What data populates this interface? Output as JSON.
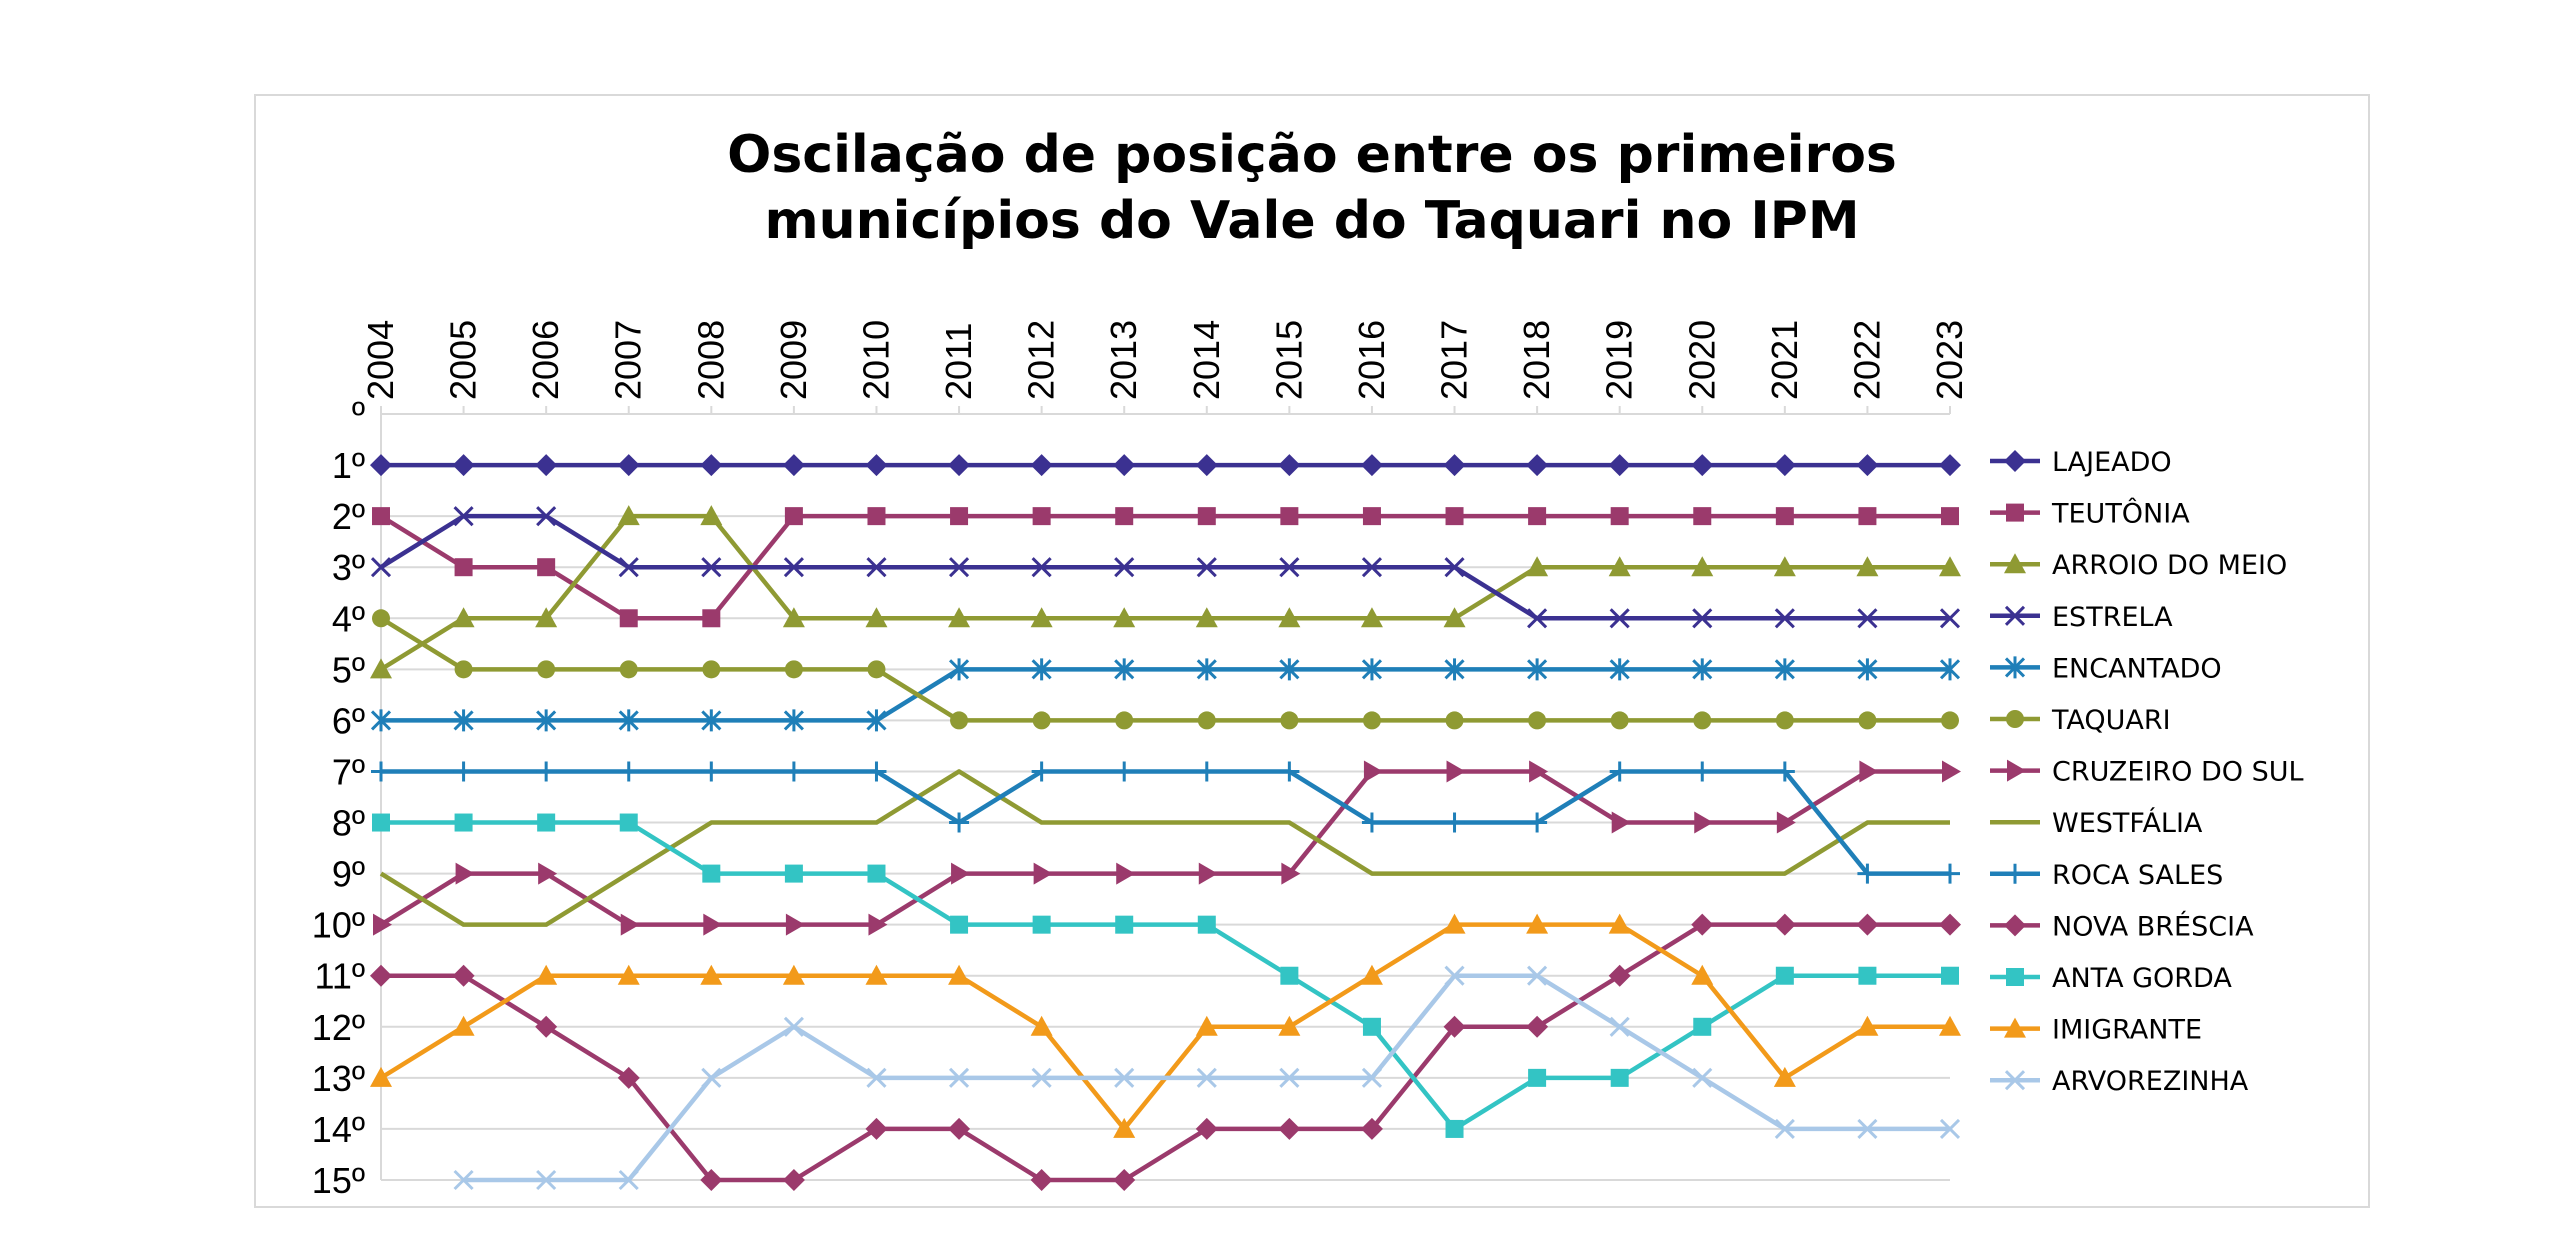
{
  "chart_data": {
    "type": "line",
    "title_lines": [
      "Oscilação de posição entre os primeiros",
      "municípios do Vale do Taquari no IPM"
    ],
    "categories": [
      "2004",
      "2005",
      "2006",
      "2007",
      "2008",
      "2009",
      "2010",
      "2011",
      "2012",
      "2013",
      "2014",
      "2015",
      "2016",
      "2017",
      "2018",
      "2019",
      "2020",
      "2021",
      "2022",
      "2023"
    ],
    "y_tick_labels": [
      "º",
      "1º",
      "2º",
      "3º",
      "4º",
      "5º",
      "6º",
      "7º",
      "8º",
      "9º",
      "10º",
      "11º",
      "12º",
      "13º",
      "14º",
      "15º"
    ],
    "ylim": [
      0,
      15
    ],
    "y_inverted": true,
    "x_axis_position": "top",
    "grid": "horizontal",
    "legend_position": "right",
    "series": [
      {
        "name": "LAJEADO",
        "color": "#3b3191",
        "marker": "diamond",
        "values": [
          1,
          1,
          1,
          1,
          1,
          1,
          1,
          1,
          1,
          1,
          1,
          1,
          1,
          1,
          1,
          1,
          1,
          1,
          1,
          1
        ]
      },
      {
        "name": "TEUTÔNIA",
        "color": "#9b3a6c",
        "marker": "square",
        "values": [
          2,
          3,
          3,
          4,
          4,
          2,
          2,
          2,
          2,
          2,
          2,
          2,
          2,
          2,
          2,
          2,
          2,
          2,
          2,
          2
        ]
      },
      {
        "name": "ARROIO DO MEIO",
        "color": "#8f9a33",
        "marker": "triangle",
        "values": [
          5,
          4,
          4,
          2,
          2,
          4,
          4,
          4,
          4,
          4,
          4,
          4,
          4,
          4,
          3,
          3,
          3,
          3,
          3,
          3
        ]
      },
      {
        "name": "ESTRELA",
        "color": "#3b3191",
        "marker": "x",
        "values": [
          3,
          2,
          2,
          3,
          3,
          3,
          3,
          3,
          3,
          3,
          3,
          3,
          3,
          3,
          4,
          4,
          4,
          4,
          4,
          4
        ]
      },
      {
        "name": "ENCANTADO",
        "color": "#1f7fb8",
        "marker": "star",
        "values": [
          6,
          6,
          6,
          6,
          6,
          6,
          6,
          5,
          5,
          5,
          5,
          5,
          5,
          5,
          5,
          5,
          5,
          5,
          5,
          5
        ]
      },
      {
        "name": "TAQUARI",
        "color": "#8f9a33",
        "marker": "circle",
        "values": [
          4,
          5,
          5,
          5,
          5,
          5,
          5,
          6,
          6,
          6,
          6,
          6,
          6,
          6,
          6,
          6,
          6,
          6,
          6,
          6
        ]
      },
      {
        "name": "CRUZEIRO DO SUL",
        "color": "#9b3a6c",
        "marker": "triangle-right",
        "values": [
          10,
          9,
          9,
          10,
          10,
          10,
          10,
          9,
          9,
          9,
          9,
          9,
          7,
          7,
          7,
          8,
          8,
          8,
          7,
          7
        ]
      },
      {
        "name": "WESTFÁLIA",
        "color": "#8f9a33",
        "marker": "none",
        "values": [
          9,
          10,
          10,
          9,
          8,
          8,
          8,
          7,
          8,
          8,
          8,
          8,
          9,
          9,
          9,
          9,
          9,
          9,
          8,
          8
        ]
      },
      {
        "name": "ROCA SALES",
        "color": "#1f7fb8",
        "marker": "plus",
        "values": [
          7,
          7,
          7,
          7,
          7,
          7,
          7,
          8,
          7,
          7,
          7,
          7,
          8,
          8,
          8,
          7,
          7,
          7,
          9,
          9
        ]
      },
      {
        "name": "NOVA BRÉSCIA",
        "color": "#9b3a6c",
        "marker": "diamond",
        "values": [
          11,
          11,
          12,
          13,
          15,
          15,
          14,
          14,
          15,
          15,
          14,
          14,
          14,
          12,
          12,
          11,
          10,
          10,
          10,
          10
        ]
      },
      {
        "name": "ANTA GORDA",
        "color": "#33c4c4",
        "marker": "square",
        "values": [
          8,
          8,
          8,
          8,
          9,
          9,
          9,
          10,
          10,
          10,
          10,
          11,
          12,
          14,
          13,
          13,
          12,
          11,
          11,
          11
        ]
      },
      {
        "name": "IMIGRANTE",
        "color": "#f29a1a",
        "marker": "triangle",
        "values": [
          13,
          12,
          11,
          11,
          11,
          11,
          11,
          11,
          12,
          14,
          12,
          12,
          11,
          10,
          10,
          10,
          11,
          13,
          12,
          12
        ]
      },
      {
        "name": "ARVOREZINHA",
        "color": "#a9c8e8",
        "marker": "x",
        "values": [
          null,
          15,
          15,
          15,
          13,
          12,
          13,
          13,
          13,
          13,
          13,
          13,
          13,
          11,
          11,
          12,
          13,
          14,
          14,
          14
        ]
      }
    ]
  }
}
